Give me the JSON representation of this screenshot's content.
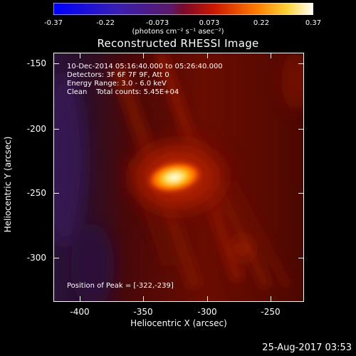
{
  "colorbar": {
    "ticks": [
      "-0.37",
      "-0.22",
      "-0.073",
      "0.073",
      "0.22",
      "0.37"
    ],
    "units": "(photons cm⁻² s⁻¹ asec⁻²)"
  },
  "title": "Reconstructed RHESSI Image",
  "info": {
    "line1": "10-Dec-2014 05:16:40.000 to 05:26:40.000",
    "line2": "Detectors: 3F 6F 7F 9F, Att 0",
    "line3": "Energy Range: 3.0 - 6.0 keV",
    "line4": "Clean    Total counts: 5.45E+04"
  },
  "axes": {
    "xlabel": "Heliocentric X (arcsec)",
    "ylabel": "Heliocentric Y (arcsec)",
    "xticks": [
      "-400",
      "-350",
      "-300",
      "-250"
    ],
    "yticks": [
      "-150",
      "-200",
      "-250",
      "-300"
    ]
  },
  "peak": "Position of Peak = [-322,-239]",
  "date_stamp": "25-Aug-2017 03:53",
  "colors": {
    "background": "#000000",
    "frame": "#ffffff"
  }
}
